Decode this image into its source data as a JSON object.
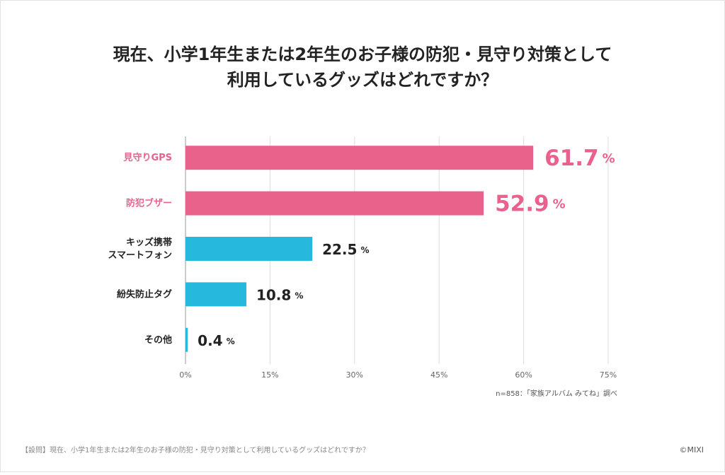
{
  "chart_data": {
    "type": "barh",
    "title": [
      "現在、小学1年生または2年生のお子様の防犯・見守り対策として",
      "利用しているグッズはどれですか？"
    ],
    "categories": [
      "見守りGPS",
      "防犯ブザー",
      "キッズ携帯\nスマートフォン",
      "紛失防止タグ",
      "その他"
    ],
    "values": [
      61.7,
      52.9,
      22.5,
      10.8,
      0.4
    ],
    "value_unit": "%",
    "colors": [
      "#e9628b",
      "#e9628b",
      "#27b8de",
      "#27b8de",
      "#27b8de"
    ],
    "highlight": [
      true,
      true,
      false,
      false,
      false
    ],
    "xlim": [
      0,
      75
    ],
    "xticks": [
      {
        "value": 0,
        "label": "0%"
      },
      {
        "value": 15,
        "label": "15%"
      },
      {
        "value": 30,
        "label": "30%"
      },
      {
        "value": 45,
        "label": "45%"
      },
      {
        "value": 60,
        "label": "60%"
      },
      {
        "value": 75,
        "label": "75%"
      }
    ],
    "grid": true,
    "note": "n=858：「家族アルバム みてね」調べ",
    "footer": "【設問】現在、小学1年生または2年生のお子様の防犯・見守り対策として利用しているグッズはどれですか？",
    "credit": "©MIXI"
  }
}
